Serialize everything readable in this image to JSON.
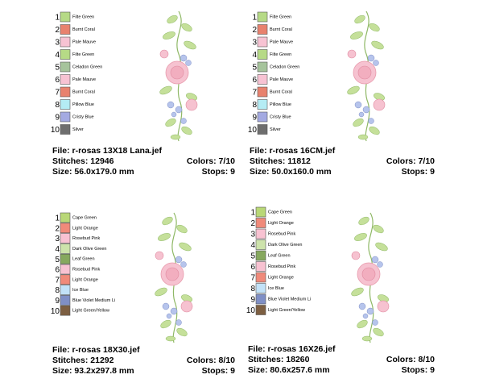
{
  "panels": [
    {
      "colors": [
        {
          "number": 1,
          "name": "Filte Green",
          "color": "#b6da86"
        },
        {
          "number": 2,
          "name": "Burnt Coral",
          "color": "#e8826e"
        },
        {
          "number": 3,
          "name": "Pale Mauve",
          "color": "#f7c3d3"
        },
        {
          "number": 4,
          "name": "Filte Green",
          "color": "#b6da86"
        },
        {
          "number": 5,
          "name": "Celadon Green",
          "color": "#a6c49c"
        },
        {
          "number": 6,
          "name": "Pale Mauve",
          "color": "#f7c3d3"
        },
        {
          "number": 7,
          "name": "Burnt Coral",
          "color": "#e8826e"
        },
        {
          "number": 8,
          "name": "Pillow Blue",
          "color": "#b4ecf4"
        },
        {
          "number": 9,
          "name": "Cristy Blue",
          "color": "#a4aae2"
        },
        {
          "number": 10,
          "name": "Silver",
          "color": "#6e6e6e"
        }
      ],
      "file": "File: r-rosas 13X18 Lana.jef",
      "stitches": "Stitches: 12946",
      "size": "Size: 56.0x179.0 mm",
      "colors_count": "Colors: 7/10",
      "stops": "Stops: 9"
    },
    {
      "colors": [
        {
          "number": 1,
          "name": "Filte Green",
          "color": "#b6da86"
        },
        {
          "number": 2,
          "name": "Burnt Coral",
          "color": "#e8826e"
        },
        {
          "number": 3,
          "name": "Pale Mauve",
          "color": "#f7c3d3"
        },
        {
          "number": 4,
          "name": "Filte Green",
          "color": "#b6da86"
        },
        {
          "number": 5,
          "name": "Celadon Green",
          "color": "#a6c49c"
        },
        {
          "number": 6,
          "name": "Pale Mauve",
          "color": "#f7c3d3"
        },
        {
          "number": 7,
          "name": "Burnt Coral",
          "color": "#e8826e"
        },
        {
          "number": 8,
          "name": "Pillow Blue",
          "color": "#b4ecf4"
        },
        {
          "number": 9,
          "name": "Cristy Blue",
          "color": "#a4aae2"
        },
        {
          "number": 10,
          "name": "Silver",
          "color": "#6e6e6e"
        }
      ],
      "file": "File: r-rosas 16CM.jef",
      "stitches": "Stitches: 11812",
      "size": "Size: 50.0x160.0 mm",
      "colors_count": "Colors: 7/10",
      "stops": "Stops: 9"
    },
    {
      "colors": [
        {
          "number": 1,
          "name": "Cape Green",
          "color": "#b9d877"
        },
        {
          "number": 2,
          "name": "Light Orange",
          "color": "#f08a7a"
        },
        {
          "number": 3,
          "name": "Rosebud Pink",
          "color": "#f8c2d2"
        },
        {
          "number": 4,
          "name": "Dark Olive Green",
          "color": "#cde3ab"
        },
        {
          "number": 5,
          "name": "Leaf Green",
          "color": "#86a85e"
        },
        {
          "number": 6,
          "name": "Rosebud Pink",
          "color": "#f8c2d2"
        },
        {
          "number": 7,
          "name": "Light Orange",
          "color": "#f08a7a"
        },
        {
          "number": 8,
          "name": "Ice Blue",
          "color": "#c2e2f8"
        },
        {
          "number": 9,
          "name": "Blue Violet Medium Li",
          "color": "#7f8fc6"
        },
        {
          "number": 10,
          "name": "Light Green/Yellow",
          "color": "#7d5f42"
        }
      ],
      "file": "File: r-rosas 18X30.jef",
      "stitches": "Stitches: 21292",
      "size": "Size: 93.2x297.8 mm",
      "colors_count": "Colors: 8/10",
      "stops": "Stops: 9"
    },
    {
      "colors": [
        {
          "number": 1,
          "name": "Cape Green",
          "color": "#b9d877"
        },
        {
          "number": 2,
          "name": "Light Orange",
          "color": "#f08a7a"
        },
        {
          "number": 3,
          "name": "Rosebud Pink",
          "color": "#f8c2d2"
        },
        {
          "number": 4,
          "name": "Dark Olive Green",
          "color": "#cde3ab"
        },
        {
          "number": 5,
          "name": "Leaf Green",
          "color": "#86a85e"
        },
        {
          "number": 6,
          "name": "Rosebud Pink",
          "color": "#f8c2d2"
        },
        {
          "number": 7,
          "name": "Light Orange",
          "color": "#f08a7a"
        },
        {
          "number": 8,
          "name": "Ice Blue",
          "color": "#c2e2f8"
        },
        {
          "number": 9,
          "name": "Blue Violet Medium Li",
          "color": "#7f8fc6"
        },
        {
          "number": 10,
          "name": "Light Green/Yellow",
          "color": "#7d5f42"
        }
      ],
      "file": "File: r-rosas 16X26.jef",
      "stitches": "Stitches: 18260",
      "size": "Size: 80.6x257.6 mm",
      "colors_count": "Colors: 8/10",
      "stops": "Stops: 9"
    }
  ]
}
